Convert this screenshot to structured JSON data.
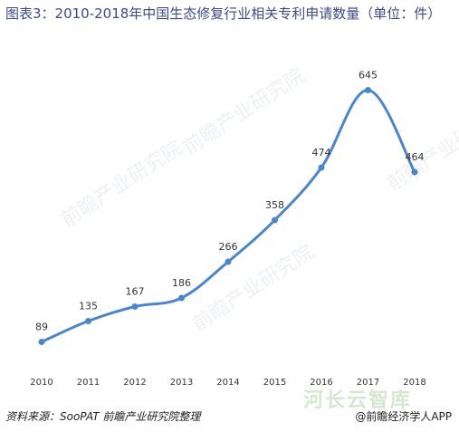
{
  "title": "图表3：2010-2018年中国生态修复行业相关专利申请数量（单位：件）",
  "footer": {
    "source": "资料来源：SooPAT 前瞻产业研究院整理",
    "credit": "@前瞻经济学人APP"
  },
  "watermarks": {
    "bottom_text": "河长云智库",
    "diagonal_text": "前瞻产业研究院"
  },
  "colors": {
    "line": "#4a86cf",
    "title": "#3d4a8a",
    "label": "#333333"
  },
  "chart_data": {
    "type": "line",
    "title": "图表3：2010-2018年中国生态修复行业相关专利申请数量（单位：件）",
    "xlabel": "",
    "ylabel": "",
    "categories": [
      "2010",
      "2011",
      "2012",
      "2013",
      "2014",
      "2015",
      "2016",
      "2017",
      "2018"
    ],
    "values": [
      89,
      135,
      167,
      186,
      266,
      358,
      474,
      645,
      464
    ],
    "ylim": [
      0,
      720
    ],
    "grid": false,
    "legend": "none",
    "smooth": true
  }
}
